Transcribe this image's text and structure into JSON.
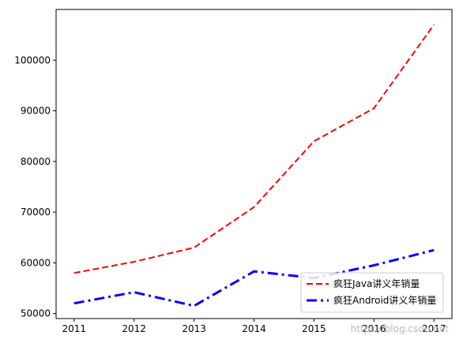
{
  "chart_data": {
    "type": "line",
    "title": "",
    "xlabel": "",
    "ylabel": "",
    "x": [
      2011,
      2012,
      2013,
      2014,
      2015,
      2016,
      2017
    ],
    "x_ticks": [
      "2011",
      "2012",
      "2013",
      "2014",
      "2015",
      "2016",
      "2017"
    ],
    "y_ticks": [
      "50000",
      "60000",
      "70000",
      "80000",
      "90000",
      "100000"
    ],
    "xlim": [
      2010.7,
      2017.3
    ],
    "ylim": [
      49000,
      110000
    ],
    "grid": false,
    "legend_position": "lower-right",
    "series": [
      {
        "name": "疯狂Java讲义年销量",
        "values": [
          58000,
          60200,
          63000,
          71000,
          84000,
          90500,
          107000
        ],
        "color": "#ff0000",
        "line_style": "dashed"
      },
      {
        "name": "疯狂Android讲义年销量",
        "values": [
          52000,
          54200,
          51500,
          58300,
          57000,
          59500,
          62500
        ],
        "color": "#0000ff",
        "line_style": "dash-dot"
      }
    ]
  },
  "watermark": "https://blog.csdn.net"
}
